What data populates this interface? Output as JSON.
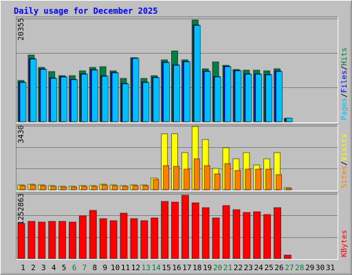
{
  "chart_data": [
    {
      "type": "bar",
      "title": "Daily usage for December 2025",
      "categories": [
        "1",
        "2",
        "3",
        "4",
        "5",
        "6",
        "7",
        "8",
        "9",
        "10",
        "11",
        "12",
        "13",
        "14",
        "15",
        "16",
        "17",
        "18",
        "19",
        "20",
        "21",
        "22",
        "23",
        "24",
        "25",
        "26",
        "27",
        "28",
        "29",
        "30",
        "31"
      ],
      "category_colors": [
        "#000000",
        "#000000",
        "#000000",
        "#000000",
        "#000000",
        "#008040",
        "#008040",
        "#000000",
        "#000000",
        "#000000",
        "#000000",
        "#000000",
        "#008040",
        "#008040",
        "#000000",
        "#000000",
        "#000000",
        "#000000",
        "#000000",
        "#008040",
        "#008040",
        "#000000",
        "#000000",
        "#000000",
        "#000000",
        "#000000",
        "#008040",
        "#008040",
        "#000000",
        "#000000",
        "#000000"
      ],
      "ylim": [
        0,
        20355
      ],
      "yticks": [
        20355
      ],
      "legend_separator": "/",
      "series": [
        {
          "name": "Hits",
          "color": "#008040",
          "values": [
            8142,
            13163,
            10720,
            9906,
            9092,
            9092,
            10042,
            10720,
            10856,
            10042,
            8549,
            12620,
            8549,
            9092,
            12213,
            13977,
            12213,
            20084,
            10449,
            11806,
            11127,
            10313,
            10178,
            10178,
            10042,
            10449,
            679,
            null,
            null,
            null,
            null
          ]
        },
        {
          "name": "Files",
          "color": "#0000ff",
          "values": [
            7835,
            12449,
            10413,
            8649,
            8921,
            8378,
            9463,
            10278,
            9056,
            9735,
            7564,
            12584,
            7835,
            8785,
            11770,
            11227,
            11906,
            19098,
            10006,
            8921,
            10956,
            10142,
            9463,
            9463,
            9328,
            10006,
            679,
            null,
            null,
            null,
            null
          ]
        },
        {
          "name": "Pages",
          "color": "#00c0ff",
          "values": [
            7735,
            12349,
            10313,
            8549,
            8821,
            8278,
            9363,
            10178,
            8956,
            9635,
            7464,
            12484,
            7735,
            8685,
            11670,
            11127,
            11806,
            18998,
            9906,
            8821,
            10856,
            10042,
            9363,
            9363,
            9228,
            9906,
            679,
            null,
            null,
            null,
            null
          ]
        }
      ]
    },
    {
      "type": "bar",
      "ylim": [
        0,
        3430
      ],
      "yticks": [
        3430
      ],
      "legend_separator": "/",
      "series": [
        {
          "name": "Visits",
          "color": "#ffff00",
          "values": [
            258,
            295,
            258,
            221,
            185,
            185,
            221,
            221,
            295,
            258,
            221,
            258,
            258,
            627,
            3000,
            3000,
            1992,
            3394,
            2694,
            1144,
            2251,
            1660,
            1992,
            1328,
            1660,
            1992,
            111,
            null,
            null,
            null,
            null
          ]
        },
        {
          "name": "Sites",
          "color": "#ff8000",
          "values": [
            221,
            258,
            221,
            185,
            148,
            148,
            185,
            185,
            258,
            221,
            185,
            221,
            221,
            553,
            1292,
            1255,
            1107,
            1660,
            1292,
            849,
            1402,
            1033,
            1107,
            1107,
            1107,
            812,
            74,
            null,
            null,
            null,
            null
          ]
        }
      ]
    },
    {
      "type": "bar",
      "ylim": [
        0,
        1252863
      ],
      "yticks": [
        1252863
      ],
      "series": [
        {
          "name": "KBytes",
          "color": "#ff0000",
          "values": [
            679728,
            719712,
            706384,
            719712,
            719712,
            706384,
            826336,
            932960,
            773024,
            733040,
            879648,
            773024,
            733040,
            786352,
            1106224,
            1092896,
            1226176,
            1079568,
            986272,
            786352,
            1026256,
            946288,
            892976,
            906304,
            852992,
            986272,
            66640,
            null,
            null,
            null,
            null
          ]
        }
      ]
    }
  ]
}
